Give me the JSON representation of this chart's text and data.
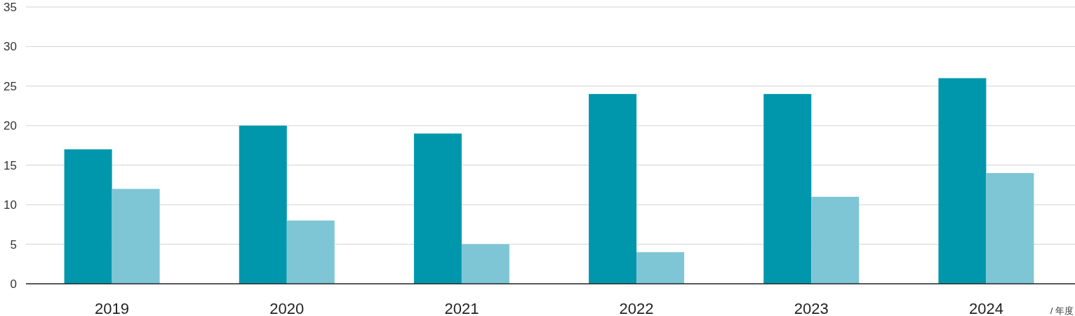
{
  "chart_data": {
    "type": "bar",
    "xlabel": "/ 年度",
    "categories": [
      "2019",
      "2020",
      "2021",
      "2022",
      "2023",
      "2024"
    ],
    "series": [
      {
        "color": "#0097ad",
        "values": [
          17,
          20,
          19,
          24,
          24,
          26
        ]
      },
      {
        "color": "#7ec6d5",
        "values": [
          12,
          8,
          5,
          4,
          11,
          14
        ]
      }
    ],
    "ylim": [
      0,
      35
    ],
    "yticks": [
      0,
      5,
      10,
      15,
      20,
      25,
      30,
      35
    ],
    "grid": "y"
  }
}
